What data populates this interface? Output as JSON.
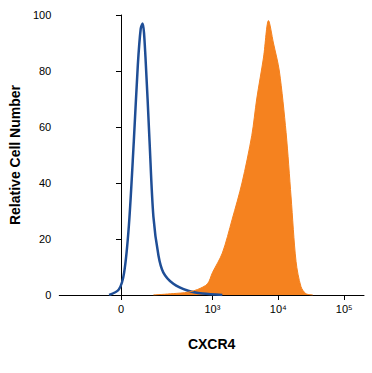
{
  "chart_data": {
    "type": "line",
    "xlabel": "CXCR4",
    "ylabel": "Relative Cell Number",
    "xlim": [
      -350,
      200000
    ],
    "xticks": [
      0,
      {
        "value": 1000,
        "label": "10³"
      },
      {
        "value": 10000,
        "label": "10⁴"
      },
      {
        "value": 100000,
        "label": "10⁵"
      }
    ],
    "ylim": [
      0,
      100
    ],
    "yticks": [
      0,
      20,
      40,
      60,
      80,
      100
    ],
    "grid": false,
    "series": [
      {
        "type": "line",
        "color": "#1f4e96",
        "x": [
          -35,
          -6,
          9,
          23,
          38,
          51,
          61,
          68,
          79,
          96,
          114,
          141,
          171,
          249,
          424,
          708,
          1415
        ],
        "values": [
          0,
          2,
          8,
          25,
          55,
          82,
          95,
          97,
          85,
          55,
          28,
          14,
          8,
          4,
          1.5,
          0.5,
          0
        ]
      },
      {
        "type": "area",
        "color": "#f5821f",
        "x": [
          114,
          249,
          424,
          596,
          841,
          1000,
          1415,
          1993,
          2811,
          3963,
          4706,
          5984,
          7104,
          8440,
          10376,
          13140,
          15640,
          18600,
          22100,
          26200,
          33400
        ],
        "values": [
          0,
          0.5,
          1,
          2,
          4,
          8,
          15,
          27,
          40,
          57,
          70,
          85,
          98,
          90,
          80,
          58,
          35,
          12,
          3,
          0.5,
          0
        ]
      }
    ]
  }
}
